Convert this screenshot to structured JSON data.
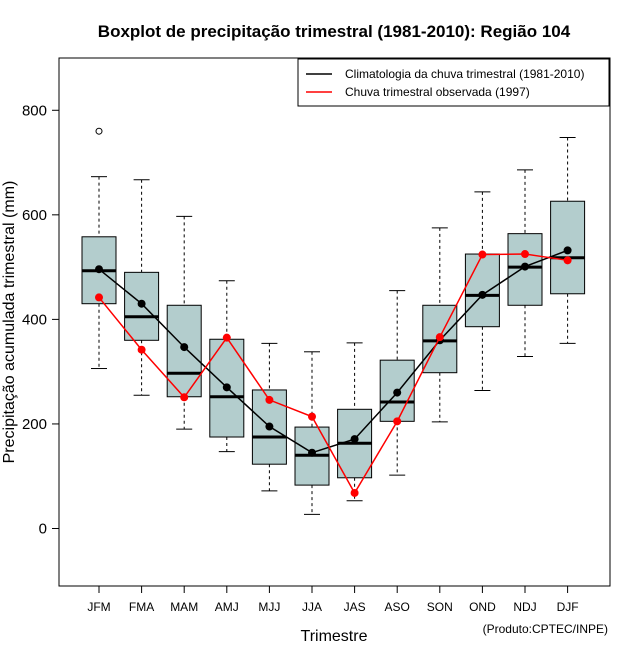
{
  "chart_data": {
    "type": "boxplot",
    "title": "Boxplot de precipitação trimestral (1981-2010): Região 104",
    "xlabel": "Trimestre",
    "ylabel": "Precipitação acumulada trimestral (mm)",
    "ylim": [
      -110,
      900
    ],
    "yticks": [
      0,
      200,
      400,
      600,
      800
    ],
    "credit": "(Produto:CPTEC/INPE)",
    "legend_position": "top-right",
    "categories": [
      "JFM",
      "FMA",
      "MAM",
      "AMJ",
      "MJJ",
      "JJA",
      "JAS",
      "ASO",
      "SON",
      "OND",
      "NDJ",
      "DJF"
    ],
    "boxes": [
      {
        "whisker_low": 306,
        "q1": 430,
        "median": 493,
        "q3": 558,
        "whisker_high": 673,
        "outliers": [
          760
        ]
      },
      {
        "whisker_low": 255,
        "q1": 360,
        "median": 405,
        "q3": 490,
        "whisker_high": 667,
        "outliers": []
      },
      {
        "whisker_low": 190,
        "q1": 252,
        "median": 297,
        "q3": 427,
        "whisker_high": 597,
        "outliers": []
      },
      {
        "whisker_low": 147,
        "q1": 175,
        "median": 252,
        "q3": 362,
        "whisker_high": 474,
        "outliers": []
      },
      {
        "whisker_low": 72,
        "q1": 123,
        "median": 175,
        "q3": 265,
        "whisker_high": 354,
        "outliers": []
      },
      {
        "whisker_low": 27,
        "q1": 83,
        "median": 140,
        "q3": 194,
        "whisker_high": 338,
        "outliers": []
      },
      {
        "whisker_low": 53,
        "q1": 97,
        "median": 163,
        "q3": 228,
        "whisker_high": 355,
        "outliers": []
      },
      {
        "whisker_low": 102,
        "q1": 205,
        "median": 242,
        "q3": 322,
        "whisker_high": 455,
        "outliers": []
      },
      {
        "whisker_low": 204,
        "q1": 298,
        "median": 359,
        "q3": 427,
        "whisker_high": 575,
        "outliers": []
      },
      {
        "whisker_low": 264,
        "q1": 386,
        "median": 446,
        "q3": 525,
        "whisker_high": 644,
        "outliers": []
      },
      {
        "whisker_low": 329,
        "q1": 427,
        "median": 500,
        "q3": 564,
        "whisker_high": 686,
        "outliers": []
      },
      {
        "whisker_low": 354,
        "q1": 449,
        "median": 518,
        "q3": 626,
        "whisker_high": 748,
        "outliers": []
      }
    ],
    "series": [
      {
        "name": "Climatologia da chuva trimestral (1981-2010)",
        "color": "#000000",
        "values": [
          496,
          430,
          347,
          270,
          195,
          145,
          171,
          260,
          360,
          447,
          501,
          532
        ]
      },
      {
        "name": "Chuva trimestral observada (1997)",
        "color": "#ff0000",
        "values": [
          442,
          342,
          251,
          365,
          246,
          214,
          68,
          205,
          366,
          524,
          525,
          513
        ]
      }
    ],
    "box_fill": "#b3cdcd"
  }
}
